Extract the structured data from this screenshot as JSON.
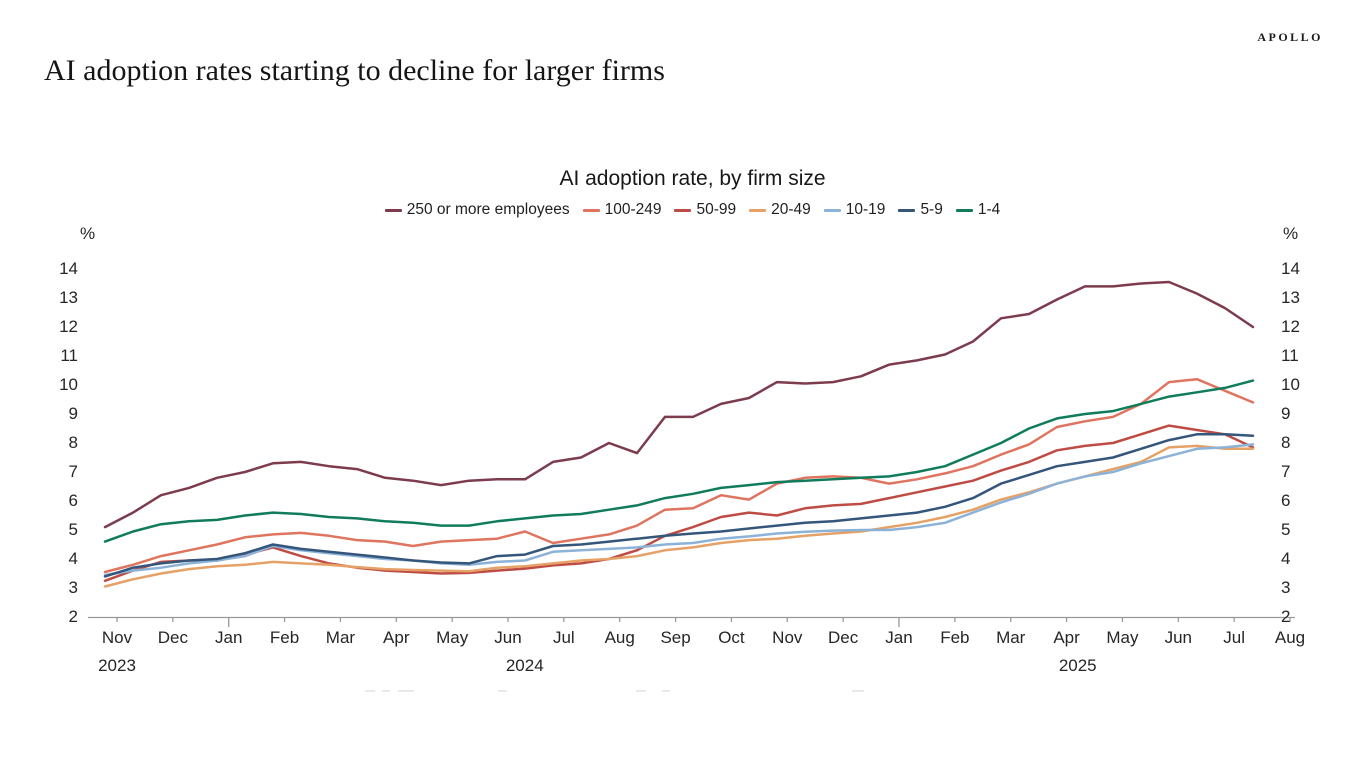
{
  "page": {
    "brand": "APOLLO",
    "title": "AI adoption rates starting to decline for larger firms"
  },
  "chart_data": {
    "type": "line",
    "title": "AI adoption rate, by firm size",
    "ylabel_left": "%",
    "ylabel_right": "%",
    "ylim": [
      2,
      14
    ],
    "y_ticks": [
      14,
      13,
      12,
      11,
      10,
      9,
      8,
      7,
      6,
      5,
      4,
      3,
      2
    ],
    "grid": false,
    "legend_position": "top",
    "x_axis": {
      "months": [
        "Nov",
        "Dec",
        "Jan",
        "Feb",
        "Mar",
        "Apr",
        "May",
        "Jun",
        "Jul",
        "Aug",
        "Sep",
        "Oct",
        "Nov",
        "Dec",
        "Jan",
        "Feb",
        "Mar",
        "Apr",
        "May",
        "Jun",
        "Jul",
        "Aug"
      ],
      "years": [
        {
          "label": "2023",
          "pos": 0
        },
        {
          "label": "2024",
          "pos": 7.3
        },
        {
          "label": "2025",
          "pos": 17.2
        }
      ],
      "samples_per_month": 2,
      "range_note": "biweekly observations, Nov 2023 - late Jul 2025"
    },
    "series": [
      {
        "name": "250 or more employees",
        "color": "#7d3c4e",
        "values": [
          5.1,
          5.6,
          6.2,
          6.45,
          6.8,
          7.0,
          7.3,
          7.35,
          7.2,
          7.1,
          6.8,
          6.7,
          6.55,
          6.7,
          6.75,
          6.75,
          7.35,
          7.5,
          8.0,
          7.65,
          8.9,
          8.9,
          9.35,
          9.55,
          10.1,
          10.05,
          10.1,
          10.3,
          10.7,
          10.85,
          11.05,
          11.5,
          12.3,
          12.45,
          12.95,
          13.4,
          13.4,
          13.5,
          13.55,
          13.15,
          12.65,
          12.0
        ]
      },
      {
        "name": "100-249",
        "color": "#df745f",
        "values": [
          3.55,
          3.8,
          4.1,
          4.3,
          4.5,
          4.75,
          4.85,
          4.9,
          4.8,
          4.65,
          4.6,
          4.45,
          4.6,
          4.65,
          4.7,
          4.95,
          4.55,
          4.7,
          4.85,
          5.15,
          5.7,
          5.75,
          6.2,
          6.05,
          6.6,
          6.8,
          6.85,
          6.8,
          6.6,
          6.75,
          6.95,
          7.2,
          7.6,
          7.95,
          8.55,
          8.75,
          8.9,
          9.35,
          10.1,
          10.2,
          9.8,
          9.4
        ]
      },
      {
        "name": "50-99",
        "color": "#bf4c44",
        "values": [
          3.25,
          3.6,
          3.9,
          3.95,
          3.95,
          4.15,
          4.4,
          4.1,
          3.85,
          3.7,
          3.6,
          3.55,
          3.5,
          3.52,
          3.6,
          3.67,
          3.78,
          3.85,
          4.0,
          4.3,
          4.8,
          5.1,
          5.45,
          5.6,
          5.5,
          5.75,
          5.85,
          5.9,
          6.1,
          6.3,
          6.5,
          6.7,
          7.05,
          7.35,
          7.75,
          7.9,
          8.0,
          8.3,
          8.6,
          8.45,
          8.3,
          7.85
        ]
      },
      {
        "name": "20-49",
        "color": "#e5a166",
        "values": [
          3.05,
          3.3,
          3.5,
          3.65,
          3.75,
          3.8,
          3.9,
          3.85,
          3.8,
          3.72,
          3.65,
          3.62,
          3.6,
          3.58,
          3.7,
          3.75,
          3.85,
          3.95,
          4.0,
          4.1,
          4.3,
          4.4,
          4.55,
          4.65,
          4.7,
          4.8,
          4.88,
          4.95,
          5.1,
          5.25,
          5.45,
          5.7,
          6.05,
          6.3,
          6.6,
          6.85,
          7.1,
          7.35,
          7.85,
          7.9,
          7.8,
          7.8
        ]
      },
      {
        "name": "10-19",
        "color": "#8cb2d8",
        "values": [
          3.45,
          3.6,
          3.7,
          3.85,
          3.95,
          4.1,
          4.45,
          4.3,
          4.2,
          4.1,
          4.0,
          3.95,
          3.85,
          3.8,
          3.9,
          3.95,
          4.25,
          4.3,
          4.35,
          4.4,
          4.5,
          4.55,
          4.7,
          4.78,
          4.88,
          4.94,
          4.98,
          5.0,
          5.0,
          5.1,
          5.25,
          5.6,
          5.95,
          6.25,
          6.6,
          6.85,
          7.0,
          7.3,
          7.55,
          7.8,
          7.85,
          7.95
        ]
      },
      {
        "name": "5-9",
        "color": "#35567b",
        "values": [
          3.4,
          3.7,
          3.85,
          3.95,
          4.0,
          4.2,
          4.5,
          4.35,
          4.25,
          4.15,
          4.05,
          3.95,
          3.88,
          3.85,
          4.1,
          4.15,
          4.45,
          4.5,
          4.6,
          4.7,
          4.8,
          4.88,
          4.95,
          5.05,
          5.15,
          5.25,
          5.3,
          5.4,
          5.5,
          5.6,
          5.8,
          6.1,
          6.6,
          6.9,
          7.2,
          7.35,
          7.5,
          7.8,
          8.1,
          8.3,
          8.3,
          8.25
        ]
      },
      {
        "name": "1-4",
        "color": "#107c5c",
        "values": [
          4.6,
          4.95,
          5.2,
          5.3,
          5.35,
          5.5,
          5.6,
          5.55,
          5.45,
          5.4,
          5.3,
          5.25,
          5.15,
          5.15,
          5.3,
          5.4,
          5.5,
          5.55,
          5.7,
          5.85,
          6.1,
          6.25,
          6.45,
          6.55,
          6.65,
          6.7,
          6.75,
          6.8,
          6.85,
          7.0,
          7.2,
          7.6,
          8.0,
          8.5,
          8.85,
          9.0,
          9.1,
          9.35,
          9.6,
          9.75,
          9.9,
          10.15
        ]
      }
    ]
  }
}
